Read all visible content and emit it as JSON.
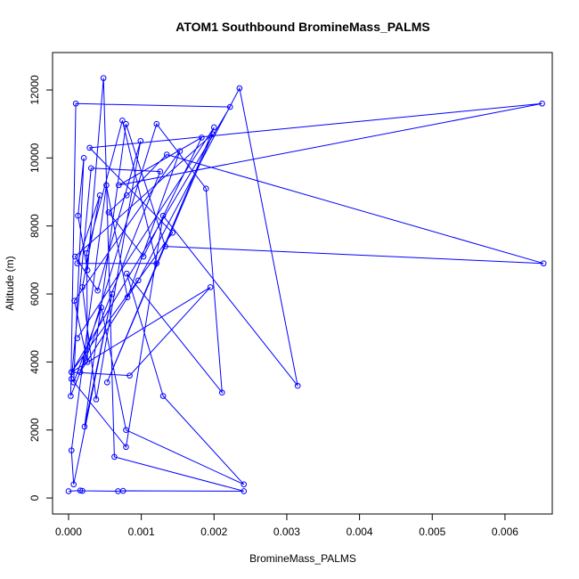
{
  "chart_data": {
    "type": "line",
    "title": "ATOM1 Southbound BromineMass_PALMS",
    "xlabel": "BromineMass_PALMS",
    "ylabel": "Altitude (m)",
    "xlim": [
      -0.00022,
      0.00665
    ],
    "ylim": [
      -470,
      13100
    ],
    "x_ticks": [
      {
        "value": 0,
        "label": "0.000"
      },
      {
        "value": 0.001,
        "label": "0.001"
      },
      {
        "value": 0.002,
        "label": "0.002"
      },
      {
        "value": 0.003,
        "label": "0.003"
      },
      {
        "value": 0.004,
        "label": "0.004"
      },
      {
        "value": 0.005,
        "label": "0.005"
      },
      {
        "value": 0.006,
        "label": "0.006"
      }
    ],
    "y_ticks": [
      {
        "value": 0,
        "label": "0"
      },
      {
        "value": 2000,
        "label": "2000"
      },
      {
        "value": 4000,
        "label": "4000"
      },
      {
        "value": 6000,
        "label": "6000"
      },
      {
        "value": 8000,
        "label": "8000"
      },
      {
        "value": 10000,
        "label": "10000"
      },
      {
        "value": 12000,
        "label": "12000"
      }
    ],
    "grid": false,
    "legend": "none",
    "color": "#0000ff",
    "series": [
      {
        "x": [
          0.0,
          0.00016,
          0.00019,
          0.00068,
          0.00075,
          0.00241,
          0.00063,
          0.00048,
          0.00026,
          0.00013,
          0.00021,
          7e-05,
          0.00045,
          0.00079,
          0.00241,
          0.0013,
          0.0008,
          0.00211,
          0.00189,
          0.00121,
          0.00016,
          0.00096,
          0.00235,
          0.00315,
          0.0013,
          0.00079,
          4e-05,
          0.00031,
          0.00126,
          3e-05,
          0.0001,
          0.00222,
          4e-05,
          0.00195,
          0.00084,
          4e-05,
          0.00143,
          0.00029,
          0.00651,
          0.00069,
          0.00183,
          0.00103,
          0.00055,
          0.0008,
          0.00135,
          0.00653,
          0.00133,
          0.00079,
          0.00022,
          0.0006,
          7e-05,
          4e-05,
          0.00052,
          0.00081,
          0.00153,
          8e-05,
          0.00026,
          0.00025,
          0.00074,
          0.00121,
          0.00012,
          0.00043,
          0.00019,
          0.00038,
          0.00099,
          0.0004,
          9e-05,
          0.00198,
          0.00053,
          0.002,
          0.00012
        ],
        "y": [
          200,
          220,
          210,
          200,
          210,
          200,
          1210,
          12350,
          6700,
          8300,
          10000,
          3400,
          5600,
          2000,
          400,
          3000,
          6600,
          3100,
          9100,
          11000,
          3700,
          6400,
          12050,
          3300,
          8300,
          1500,
          3500,
          9700,
          9600,
          3000,
          11600,
          11500,
          3700,
          6200,
          3600,
          3700,
          7800,
          10300,
          11600,
          9200,
          10600,
          7100,
          8400,
          8900,
          10100,
          6900,
          7400,
          11000,
          2100,
          6000,
          400,
          1400,
          9200,
          5900,
          10200,
          5800,
          4000,
          7200,
          11100,
          6900,
          6900,
          8900,
          6200,
          2900,
          10500,
          6100,
          7100,
          10700,
          3400,
          10900,
          4700
        ]
      }
    ]
  }
}
